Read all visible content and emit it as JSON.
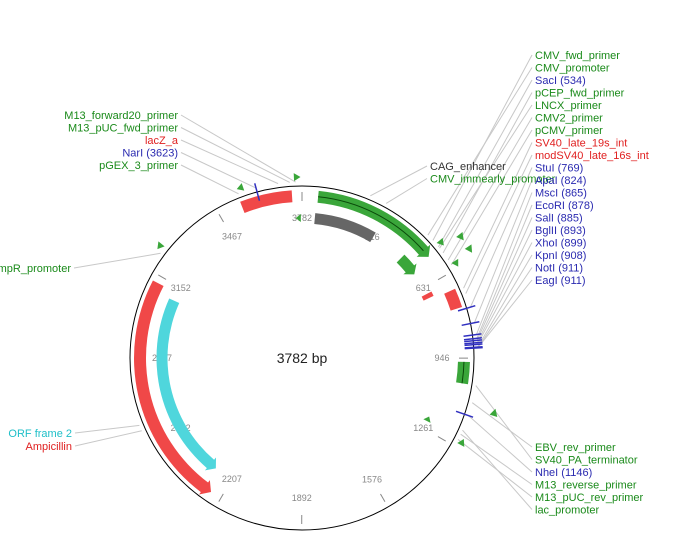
{
  "plasmid": {
    "length_label": "3782 bp",
    "total_bp": 3782
  },
  "colors": {
    "feature_green": "#3aa63a",
    "primer_green": "#3aa63a",
    "label_green": "#1a8a1a",
    "label_red": "#e02020",
    "label_blue": "#2a2ab0",
    "label_cyan": "#1fbfc8",
    "red_feature": "#f04848",
    "cyan_feature": "#4fd6dc",
    "gray_feature": "#666666",
    "backbone": "#000000",
    "leader": "#c8c8c8",
    "site_blue": "#3030c0"
  },
  "ticks": [
    {
      "pos": 316,
      "label": "316"
    },
    {
      "pos": 631,
      "label": "631"
    },
    {
      "pos": 946,
      "label": "946"
    },
    {
      "pos": 1261,
      "label": "1261"
    },
    {
      "pos": 1576,
      "label": "1576"
    },
    {
      "pos": 1892,
      "label": "1892"
    },
    {
      "pos": 2207,
      "label": "2207"
    },
    {
      "pos": 2522,
      "label": "2522"
    },
    {
      "pos": 2837,
      "label": "2837"
    },
    {
      "pos": 3152,
      "label": "3152"
    },
    {
      "pos": 3467,
      "label": "3467"
    },
    {
      "pos": 3782,
      "label": "3782"
    }
  ],
  "labels_top_left": [
    {
      "text": "M13_forward20_primer",
      "color": "label_green",
      "target": 3760
    },
    {
      "text": "M13_pUC_fwd_primer",
      "color": "label_green",
      "target": 3740
    },
    {
      "text": "lacZ_a",
      "color": "label_red",
      "target": 3700
    },
    {
      "text": "NarI (3623)",
      "color": "label_blue",
      "target": 3623
    },
    {
      "text": "pGEX_3_primer",
      "color": "label_green",
      "target": 3560
    }
  ],
  "labels_top_mid": [
    {
      "text": "CAG_enhancer",
      "color": "#333333",
      "target": 240
    },
    {
      "text": "CMV_immearly_promoter",
      "color": "label_green",
      "target": 300
    }
  ],
  "labels_left": [
    {
      "text": "ampR_promoter",
      "color": "label_green",
      "target": 3220
    },
    {
      "text": "ORF frame 2",
      "color": "label_cyan",
      "target": 2600
    },
    {
      "text": "Ampicillin",
      "color": "label_red",
      "target": 2580
    }
  ],
  "labels_right_top": [
    {
      "text": "CMV_fwd_primer",
      "color": "label_green",
      "target": 505
    },
    {
      "text": "CMV_promoter",
      "color": "label_green",
      "target": 480
    },
    {
      "text": "SacI (534)",
      "color": "label_blue",
      "target": 534
    },
    {
      "text": "pCEP_fwd_primer",
      "color": "label_green",
      "target": 560
    },
    {
      "text": "LNCX_primer",
      "color": "label_green",
      "target": 540
    },
    {
      "text": "CMV2_primer",
      "color": "label_green",
      "target": 590
    },
    {
      "text": "pCMV_primer",
      "color": "label_green",
      "target": 610
    },
    {
      "text": "SV40_late_19s_int",
      "color": "label_red",
      "target": 700
    },
    {
      "text": "modSV40_late_16s_int",
      "color": "label_red",
      "target": 720
    },
    {
      "text": "StuI (769)",
      "color": "label_blue",
      "target": 769
    },
    {
      "text": "ApaI (824)",
      "color": "label_blue",
      "target": 824
    },
    {
      "text": "MscI (865)",
      "color": "label_blue",
      "target": 865
    },
    {
      "text": "EcoRI (878)",
      "color": "label_blue",
      "target": 878
    },
    {
      "text": "SalI (885)",
      "color": "label_blue",
      "target": 885
    },
    {
      "text": "BglII (893)",
      "color": "label_blue",
      "target": 893
    },
    {
      "text": "XhoI (899)",
      "color": "label_blue",
      "target": 899
    },
    {
      "text": "KpnI (908)",
      "color": "label_blue",
      "target": 908
    },
    {
      "text": "NotI (911)",
      "color": "label_blue",
      "target": 911
    },
    {
      "text": "EagI (911)",
      "color": "label_blue",
      "target": 911
    }
  ],
  "labels_right_bottom": [
    {
      "text": "EBV_rev_primer",
      "color": "label_green",
      "target": 1100
    },
    {
      "text": "SV40_PA_terminator",
      "color": "label_green",
      "target": 1040
    },
    {
      "text": "NheI (1146)",
      "color": "label_blue",
      "target": 1146
    },
    {
      "text": "M13_reverse_primer",
      "color": "label_green",
      "target": 1215
    },
    {
      "text": "M13_pUC_rev_primer",
      "color": "label_green",
      "target": 1235
    },
    {
      "text": "lac_promoter",
      "color": "label_green",
      "target": 1200
    }
  ],
  "features": [
    {
      "name": "lacZ_a",
      "start": 3555,
      "end": 3745,
      "ring": 1,
      "color": "red_feature",
      "arrow": "none"
    },
    {
      "name": "CMV_promoter_arc",
      "start": 60,
      "end": 540,
      "ring": 1,
      "color": "feature_green",
      "arrow": "cw"
    },
    {
      "name": "CAG_enhancer",
      "start": 55,
      "end": 320,
      "ring": 2,
      "color": "gray_feature",
      "arrow": "none"
    },
    {
      "name": "CMV_promoter_small",
      "start": 470,
      "end": 560,
      "ring": 2,
      "color": "feature_green",
      "arrow": "cw"
    },
    {
      "name": "SV40_intron",
      "start": 690,
      "end": 760,
      "ring": 1,
      "color": "red_feature",
      "arrow": "none"
    },
    {
      "name": "intron_small",
      "start": 660,
      "end": 680,
      "ring": 2,
      "color": "red_feature",
      "arrow": "none"
    },
    {
      "name": "SV40_PA",
      "start": 960,
      "end": 1040,
      "ring": 1,
      "color": "feature_green",
      "arrow": "none"
    },
    {
      "name": "Ampicillin",
      "start": 2250,
      "end": 3125,
      "ring": 1,
      "color": "red_feature",
      "arrow": "ccw"
    },
    {
      "name": "ORF frame 2",
      "start": 2290,
      "end": 3090,
      "ring": 2,
      "color": "cyan_feature",
      "arrow": "ccw"
    }
  ],
  "primers": [
    {
      "pos": 3755,
      "ring": 0,
      "dir": "cw"
    },
    {
      "pos": 3755,
      "ring": 2,
      "dir": "ccw"
    },
    {
      "pos": 3560,
      "ring": 0,
      "dir": "ccw"
    },
    {
      "pos": 3225,
      "ring": 0,
      "dir": "ccw"
    },
    {
      "pos": 520,
      "ring": 0,
      "dir": "cw"
    },
    {
      "pos": 545,
      "ring": 3,
      "dir": "cw"
    },
    {
      "pos": 590,
      "ring": 3,
      "dir": "cw"
    },
    {
      "pos": 605,
      "ring": 0,
      "dir": "cw"
    },
    {
      "pos": 1100,
      "ring": 3,
      "dir": "ccw"
    },
    {
      "pos": 1205,
      "ring": 2,
      "dir": "ccw"
    },
    {
      "pos": 1225,
      "ring": 0,
      "dir": "ccw"
    }
  ],
  "sites": [
    3623,
    769,
    824,
    865,
    878,
    885,
    893,
    899,
    908,
    911,
    1146
  ]
}
